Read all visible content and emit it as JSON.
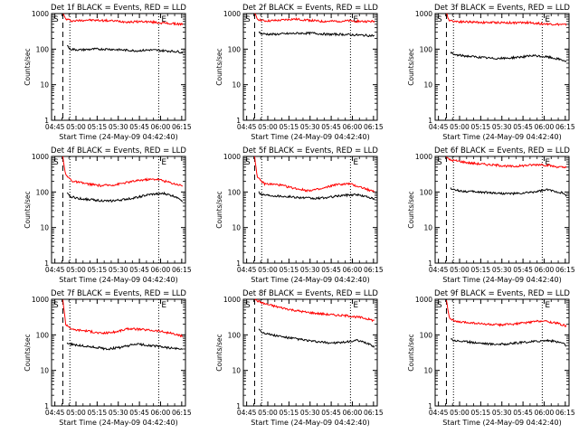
{
  "chart_data": [
    {
      "type": "line",
      "title": "Det 1f BLACK = Events, RED = LLD",
      "ylabel": "Counts/sec",
      "xlabel": "Start Time (24-May-09 04:42:40)",
      "x_ticks": [
        "04:45",
        "05:00",
        "05:15",
        "05:30",
        "05:45",
        "06:00",
        "06:15"
      ],
      "y_ticks": [
        "1",
        "10",
        "100",
        "1000"
      ],
      "ylim": [
        1,
        1000
      ],
      "xlim_minutes": [
        0,
        95
      ],
      "markers": {
        "S": "S",
        "E": "E"
      },
      "series": [
        {
          "name": "LLD",
          "color": "#ff0000",
          "minutes": [
            8,
            10,
            15,
            25,
            35,
            45,
            55,
            65,
            75,
            85,
            93
          ],
          "values": [
            1000,
            700,
            620,
            660,
            640,
            620,
            580,
            600,
            560,
            520,
            500
          ]
        },
        {
          "name": "Events",
          "color": "#000000",
          "minutes": [
            11,
            13,
            20,
            30,
            40,
            50,
            60,
            70,
            80,
            90,
            93
          ],
          "values": [
            130,
            100,
            95,
            100,
            100,
            95,
            90,
            95,
            90,
            85,
            80
          ]
        }
      ]
    },
    {
      "type": "line",
      "title": "Det 2f BLACK = Events, RED = LLD",
      "ylabel": "Counts/sec",
      "xlabel": "Start Time (24-May-09 04:42:40)",
      "x_ticks": [
        "04:45",
        "05:00",
        "05:15",
        "05:30",
        "05:45",
        "06:00",
        "06:15"
      ],
      "y_ticks": [
        "1",
        "10",
        "100",
        "1000"
      ],
      "ylim": [
        1,
        1000
      ],
      "xlim_minutes": [
        0,
        95
      ],
      "markers": {
        "S": "S",
        "E": "E"
      },
      "series": [
        {
          "name": "LLD",
          "color": "#ff0000",
          "minutes": [
            8,
            10,
            15,
            25,
            35,
            45,
            55,
            65,
            75,
            85,
            93
          ],
          "values": [
            1000,
            700,
            620,
            640,
            700,
            660,
            600,
            610,
            620,
            600,
            600
          ]
        },
        {
          "name": "Events",
          "color": "#000000",
          "minutes": [
            11,
            13,
            20,
            30,
            40,
            50,
            60,
            70,
            80,
            90,
            93
          ],
          "values": [
            300,
            270,
            260,
            270,
            280,
            280,
            260,
            260,
            250,
            240,
            240
          ]
        }
      ]
    },
    {
      "type": "line",
      "title": "Det 3f BLACK = Events, RED = LLD",
      "ylabel": "Counts/sec",
      "xlabel": "Start Time (24-May-09 04:42:40)",
      "x_ticks": [
        "04:45",
        "05:00",
        "05:15",
        "05:30",
        "05:45",
        "06:00",
        "06:15"
      ],
      "y_ticks": [
        "1",
        "10",
        "100",
        "1000"
      ],
      "ylim": [
        1,
        1000
      ],
      "xlim_minutes": [
        0,
        95
      ],
      "markers": {
        "S": "S",
        "E": "E"
      },
      "series": [
        {
          "name": "LLD",
          "color": "#ff0000",
          "minutes": [
            8,
            10,
            15,
            25,
            35,
            45,
            55,
            65,
            75,
            85,
            93
          ],
          "values": [
            1000,
            650,
            600,
            580,
            560,
            560,
            550,
            560,
            520,
            500,
            480
          ]
        },
        {
          "name": "Events",
          "color": "#000000",
          "minutes": [
            11,
            13,
            20,
            30,
            40,
            50,
            60,
            70,
            80,
            90,
            93
          ],
          "values": [
            80,
            70,
            65,
            60,
            55,
            55,
            60,
            65,
            60,
            50,
            45
          ]
        }
      ]
    },
    {
      "type": "line",
      "title": "Det 4f BLACK = Events, RED = LLD",
      "ylabel": "Counts/sec",
      "xlabel": "Start Time (24-May-09 04:42:40)",
      "x_ticks": [
        "04:45",
        "05:00",
        "05:15",
        "05:30",
        "05:45",
        "06:00",
        "06:15"
      ],
      "y_ticks": [
        "1",
        "10",
        "100",
        "1000"
      ],
      "ylim": [
        1,
        1000
      ],
      "xlim_minutes": [
        0,
        95
      ],
      "markers": {
        "S": "S",
        "E": "E"
      },
      "series": [
        {
          "name": "LLD",
          "color": "#ff0000",
          "minutes": [
            8,
            10,
            15,
            25,
            35,
            45,
            55,
            65,
            75,
            85,
            93
          ],
          "values": [
            1000,
            300,
            200,
            170,
            150,
            160,
            190,
            220,
            230,
            180,
            150
          ]
        },
        {
          "name": "Events",
          "color": "#000000",
          "minutes": [
            11,
            13,
            20,
            30,
            40,
            50,
            60,
            70,
            80,
            90,
            93
          ],
          "values": [
            90,
            75,
            65,
            60,
            55,
            60,
            70,
            85,
            90,
            70,
            55
          ]
        }
      ]
    },
    {
      "type": "line",
      "title": "Det 5f BLACK = Events, RED = LLD",
      "ylabel": "Counts/sec",
      "xlabel": "Start Time (24-May-09 04:42:40)",
      "x_ticks": [
        "04:45",
        "05:00",
        "05:15",
        "05:30",
        "05:45",
        "06:00",
        "06:15"
      ],
      "y_ticks": [
        "1",
        "10",
        "100",
        "1000"
      ],
      "ylim": [
        1,
        1000
      ],
      "xlim_minutes": [
        0,
        95
      ],
      "markers": {
        "S": "S",
        "E": "E"
      },
      "series": [
        {
          "name": "LLD",
          "color": "#ff0000",
          "minutes": [
            8,
            10,
            15,
            25,
            35,
            45,
            55,
            65,
            75,
            85,
            93
          ],
          "values": [
            1000,
            250,
            170,
            160,
            130,
            110,
            120,
            160,
            170,
            130,
            100
          ]
        },
        {
          "name": "Events",
          "color": "#000000",
          "minutes": [
            11,
            13,
            20,
            30,
            40,
            50,
            60,
            70,
            80,
            90,
            93
          ],
          "values": [
            100,
            85,
            80,
            75,
            70,
            65,
            70,
            80,
            85,
            70,
            60
          ]
        }
      ]
    },
    {
      "type": "line",
      "title": "Det 6f BLACK = Events, RED = LLD",
      "ylabel": "Counts/sec",
      "xlabel": "Start Time (24-May-09 04:42:40)",
      "x_ticks": [
        "04:45",
        "05:00",
        "05:15",
        "05:30",
        "05:45",
        "06:00",
        "06:15"
      ],
      "y_ticks": [
        "1",
        "10",
        "100",
        "1000"
      ],
      "ylim": [
        1,
        1000
      ],
      "xlim_minutes": [
        0,
        95
      ],
      "markers": {
        "S": "S",
        "E": "E"
      },
      "series": [
        {
          "name": "LLD",
          "color": "#ff0000",
          "minutes": [
            8,
            10,
            15,
            25,
            35,
            45,
            55,
            65,
            75,
            85,
            93
          ],
          "values": [
            1000,
            800,
            750,
            650,
            600,
            560,
            520,
            560,
            600,
            520,
            480
          ]
        },
        {
          "name": "Events",
          "color": "#000000",
          "minutes": [
            11,
            13,
            20,
            30,
            40,
            50,
            60,
            70,
            80,
            90,
            93
          ],
          "values": [
            130,
            115,
            105,
            100,
            95,
            90,
            90,
            100,
            115,
            95,
            80
          ]
        }
      ]
    },
    {
      "type": "line",
      "title": "Det 7f BLACK = Events, RED = LLD",
      "ylabel": "Counts/sec",
      "xlabel": "Start Time (24-May-09 04:42:40)",
      "x_ticks": [
        "04:45",
        "05:00",
        "05:15",
        "05:30",
        "05:45",
        "06:00",
        "06:15"
      ],
      "y_ticks": [
        "1",
        "10",
        "100",
        "1000"
      ],
      "ylim": [
        1,
        1000
      ],
      "xlim_minutes": [
        0,
        95
      ],
      "markers": {
        "S": "S",
        "E": "E"
      },
      "series": [
        {
          "name": "LLD",
          "color": "#ff0000",
          "minutes": [
            8,
            10,
            15,
            25,
            35,
            45,
            55,
            65,
            75,
            85,
            93
          ],
          "values": [
            1000,
            200,
            140,
            130,
            110,
            120,
            150,
            140,
            130,
            110,
            90
          ]
        },
        {
          "name": "Events",
          "color": "#000000",
          "minutes": [
            11,
            13,
            20,
            30,
            40,
            50,
            60,
            70,
            80,
            90,
            93
          ],
          "values": [
            60,
            55,
            50,
            45,
            40,
            45,
            55,
            50,
            45,
            40,
            40
          ]
        }
      ]
    },
    {
      "type": "line",
      "title": "Det 8f BLACK = Events, RED = LLD",
      "ylabel": "Counts/sec",
      "xlabel": "Start Time (24-May-09 04:42:40)",
      "x_ticks": [
        "04:45",
        "05:00",
        "05:15",
        "05:30",
        "05:45",
        "06:00",
        "06:15"
      ],
      "y_ticks": [
        "1",
        "10",
        "100",
        "1000"
      ],
      "ylim": [
        1,
        1000
      ],
      "xlim_minutes": [
        0,
        95
      ],
      "markers": {
        "S": "S",
        "E": "E"
      },
      "series": [
        {
          "name": "LLD",
          "color": "#ff0000",
          "minutes": [
            8,
            10,
            15,
            25,
            35,
            45,
            55,
            65,
            75,
            85,
            93
          ],
          "values": [
            1000,
            900,
            750,
            600,
            500,
            430,
            390,
            360,
            340,
            300,
            250
          ]
        },
        {
          "name": "Events",
          "color": "#000000",
          "minutes": [
            11,
            13,
            20,
            30,
            40,
            50,
            60,
            70,
            80,
            90,
            93
          ],
          "values": [
            150,
            120,
            100,
            85,
            75,
            65,
            60,
            60,
            70,
            55,
            45
          ]
        }
      ]
    },
    {
      "type": "line",
      "title": "Det 9f BLACK = Events, RED = LLD",
      "ylabel": "Counts/sec",
      "xlabel": "Start Time (24-May-09 04:42:40)",
      "x_ticks": [
        "04:45",
        "05:00",
        "05:15",
        "05:30",
        "05:45",
        "06:00",
        "06:15"
      ],
      "y_ticks": [
        "1",
        "10",
        "100",
        "1000"
      ],
      "ylim": [
        1,
        1000
      ],
      "xlim_minutes": [
        0,
        95
      ],
      "markers": {
        "S": "S",
        "E": "E"
      },
      "series": [
        {
          "name": "LLD",
          "color": "#ff0000",
          "minutes": [
            8,
            10,
            15,
            25,
            35,
            45,
            55,
            65,
            75,
            85,
            93
          ],
          "values": [
            1000,
            300,
            230,
            220,
            200,
            190,
            200,
            220,
            250,
            220,
            180
          ]
        },
        {
          "name": "Events",
          "color": "#000000",
          "minutes": [
            11,
            13,
            20,
            30,
            40,
            50,
            60,
            70,
            80,
            90,
            93
          ],
          "values": [
            80,
            70,
            65,
            60,
            55,
            55,
            60,
            65,
            70,
            60,
            50
          ]
        }
      ]
    }
  ]
}
